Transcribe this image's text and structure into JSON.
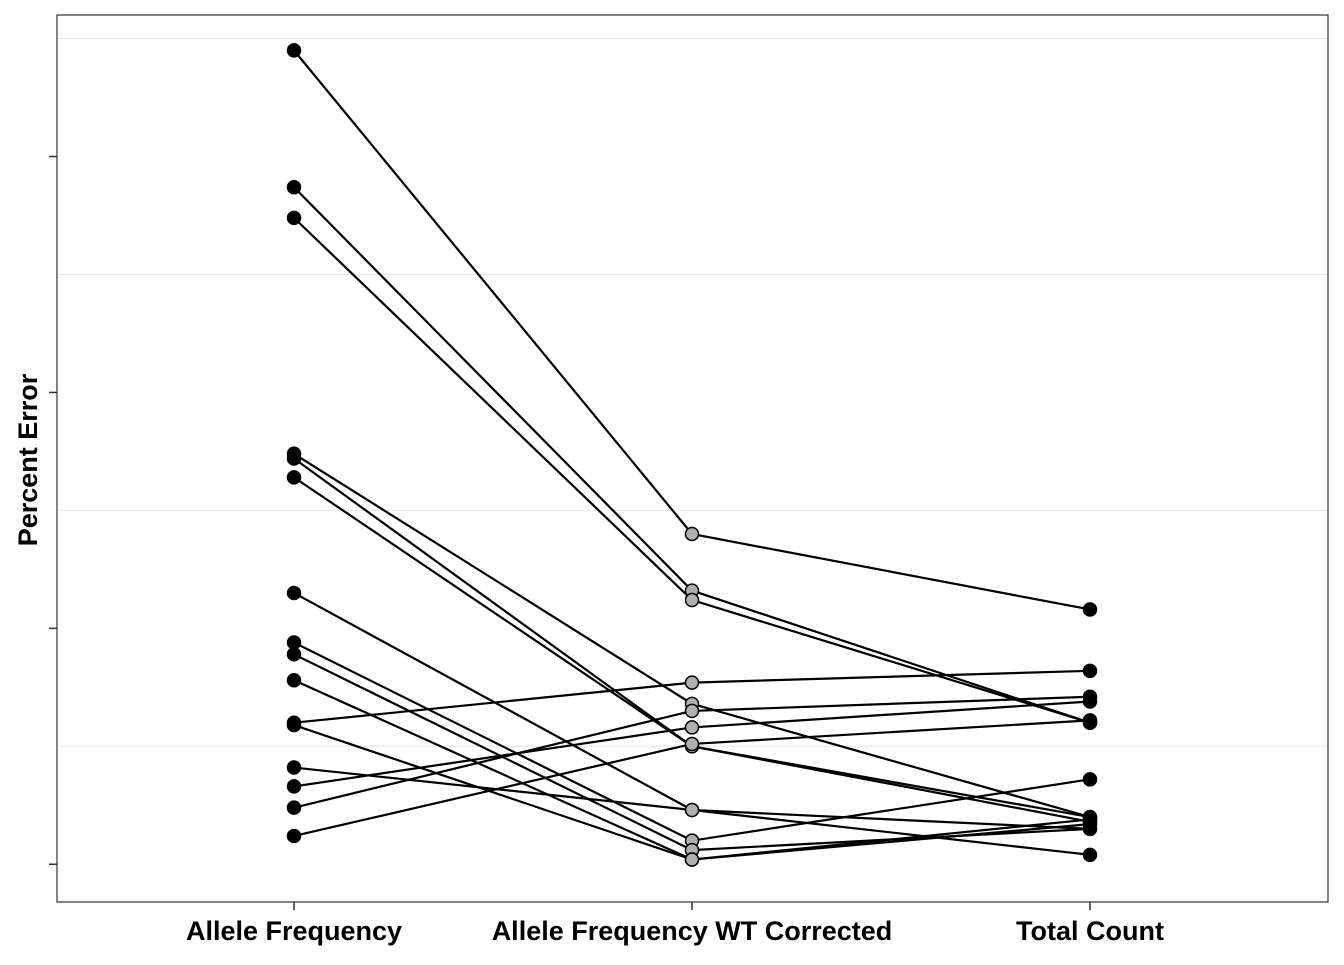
{
  "chart_data": {
    "type": "line",
    "title": "",
    "xlabel": "",
    "ylabel": "Percent Error",
    "categories": [
      "Allele Frequency",
      "Allele Frequency WT Corrected",
      "Total Count"
    ],
    "ylim": [
      -0.16,
      3.6
    ],
    "y_ticks": [
      0,
      1,
      2,
      3
    ],
    "y_tick_labels_shown": false,
    "grid": true,
    "legend": "none",
    "colors": {
      "line": "#000000",
      "point_fill_outer": "#000000",
      "point_fill_middle": "#b0b0b0",
      "point_stroke": "#000000",
      "grid": "#e6e6e6",
      "panel_border": "#333333",
      "axis_text": "#000000"
    },
    "series": [
      {
        "values": [
          3.45,
          1.4,
          1.08
        ]
      },
      {
        "values": [
          2.87,
          1.16,
          0.6
        ]
      },
      {
        "values": [
          2.74,
          1.12,
          0.6
        ]
      },
      {
        "values": [
          1.74,
          0.68,
          0.2
        ]
      },
      {
        "values": [
          1.72,
          0.5,
          0.2
        ]
      },
      {
        "values": [
          1.64,
          0.5,
          0.18
        ]
      },
      {
        "values": [
          1.15,
          0.23,
          0.15
        ]
      },
      {
        "values": [
          0.94,
          0.1,
          0.36
        ]
      },
      {
        "values": [
          0.89,
          0.06,
          0.15
        ]
      },
      {
        "values": [
          0.78,
          0.02,
          0.19
        ]
      },
      {
        "values": [
          0.6,
          0.77,
          0.82
        ]
      },
      {
        "values": [
          0.59,
          0.02,
          0.17
        ]
      },
      {
        "values": [
          0.41,
          0.23,
          0.04
        ]
      },
      {
        "values": [
          0.33,
          0.58,
          0.69
        ]
      },
      {
        "values": [
          0.24,
          0.65,
          0.71
        ]
      },
      {
        "values": [
          0.12,
          0.51,
          0.61
        ]
      }
    ]
  }
}
